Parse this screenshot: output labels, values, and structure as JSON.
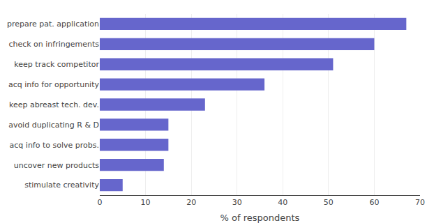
{
  "chart_data": {
    "type": "bar",
    "orientation": "horizontal",
    "categories": [
      "stimulate creativity",
      "uncover new products",
      "acq info to solve probs.",
      "avoid duplicating R & D",
      "keep abreast tech. dev.",
      "acq info for opportunity",
      "keep track competitor",
      "check on infringements",
      "prepare pat. application"
    ],
    "values": [
      5,
      14,
      15,
      15,
      23,
      36,
      51,
      60,
      67
    ],
    "color": "#6666cc",
    "xlabel": "% of respondents",
    "xlim": [
      0,
      70
    ],
    "xticks": [
      0,
      10,
      20,
      30,
      40,
      50,
      60,
      70
    ],
    "grid": true
  }
}
